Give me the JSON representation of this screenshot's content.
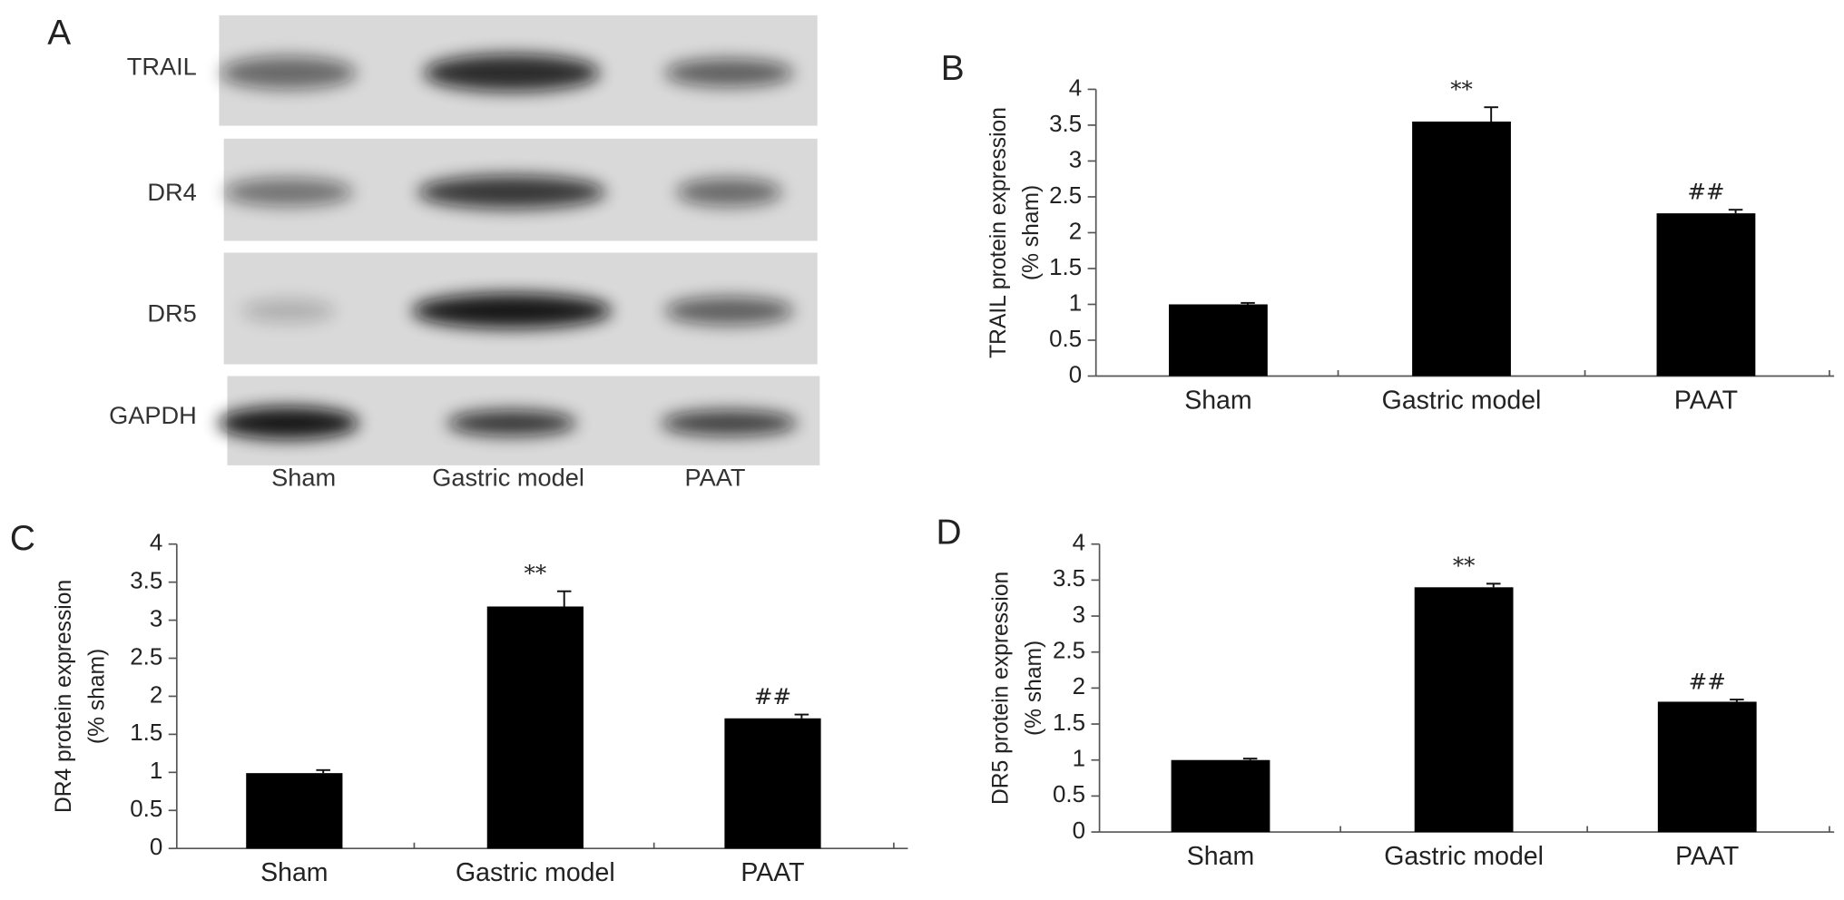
{
  "blot": {
    "label": "A",
    "rows": [
      "TRAIL",
      "DR4",
      "DR5",
      "GAPDH"
    ],
    "lanes": [
      "Sham",
      "Gastric model",
      "PAAT"
    ]
  },
  "chart_data": [
    {
      "type": "bar",
      "panel": "B",
      "ylabel": [
        "TRAIL protein expression",
        "(% sham)"
      ],
      "categories": [
        "Sham",
        "Gastric model",
        "PAAT"
      ],
      "values": [
        1.0,
        3.55,
        2.27
      ],
      "errors": [
        0.02,
        0.2,
        0.05
      ],
      "annotations": [
        null,
        "**",
        "##"
      ],
      "color": "#000000",
      "ylim": [
        0,
        4
      ],
      "yticks": [
        0,
        0.5,
        1,
        1.5,
        2,
        2.5,
        3,
        3.5,
        4
      ]
    },
    {
      "type": "bar",
      "panel": "C",
      "ylabel": [
        "DR4 protein expression",
        "(% sham)"
      ],
      "categories": [
        "Sham",
        "Gastric model",
        "PAAT"
      ],
      "values": [
        0.99,
        3.18,
        1.71
      ],
      "errors": [
        0.04,
        0.2,
        0.05
      ],
      "annotations": [
        null,
        "**",
        "##"
      ],
      "color": "#000000",
      "ylim": [
        0,
        4
      ],
      "yticks": [
        0,
        0.5,
        1,
        1.5,
        2,
        2.5,
        3,
        3.5,
        4
      ]
    },
    {
      "type": "bar",
      "panel": "D",
      "ylabel": [
        "DR5 protein expression",
        "(% sham)"
      ],
      "categories": [
        "Sham",
        "Gastric model",
        "PAAT"
      ],
      "values": [
        1.0,
        3.4,
        1.81
      ],
      "errors": [
        0.02,
        0.05,
        0.03
      ],
      "annotations": [
        null,
        "**",
        "##"
      ],
      "color": "#000000",
      "ylim": [
        0,
        4
      ],
      "yticks": [
        0,
        0.5,
        1,
        1.5,
        2,
        2.5,
        3,
        3.5,
        4
      ]
    }
  ]
}
